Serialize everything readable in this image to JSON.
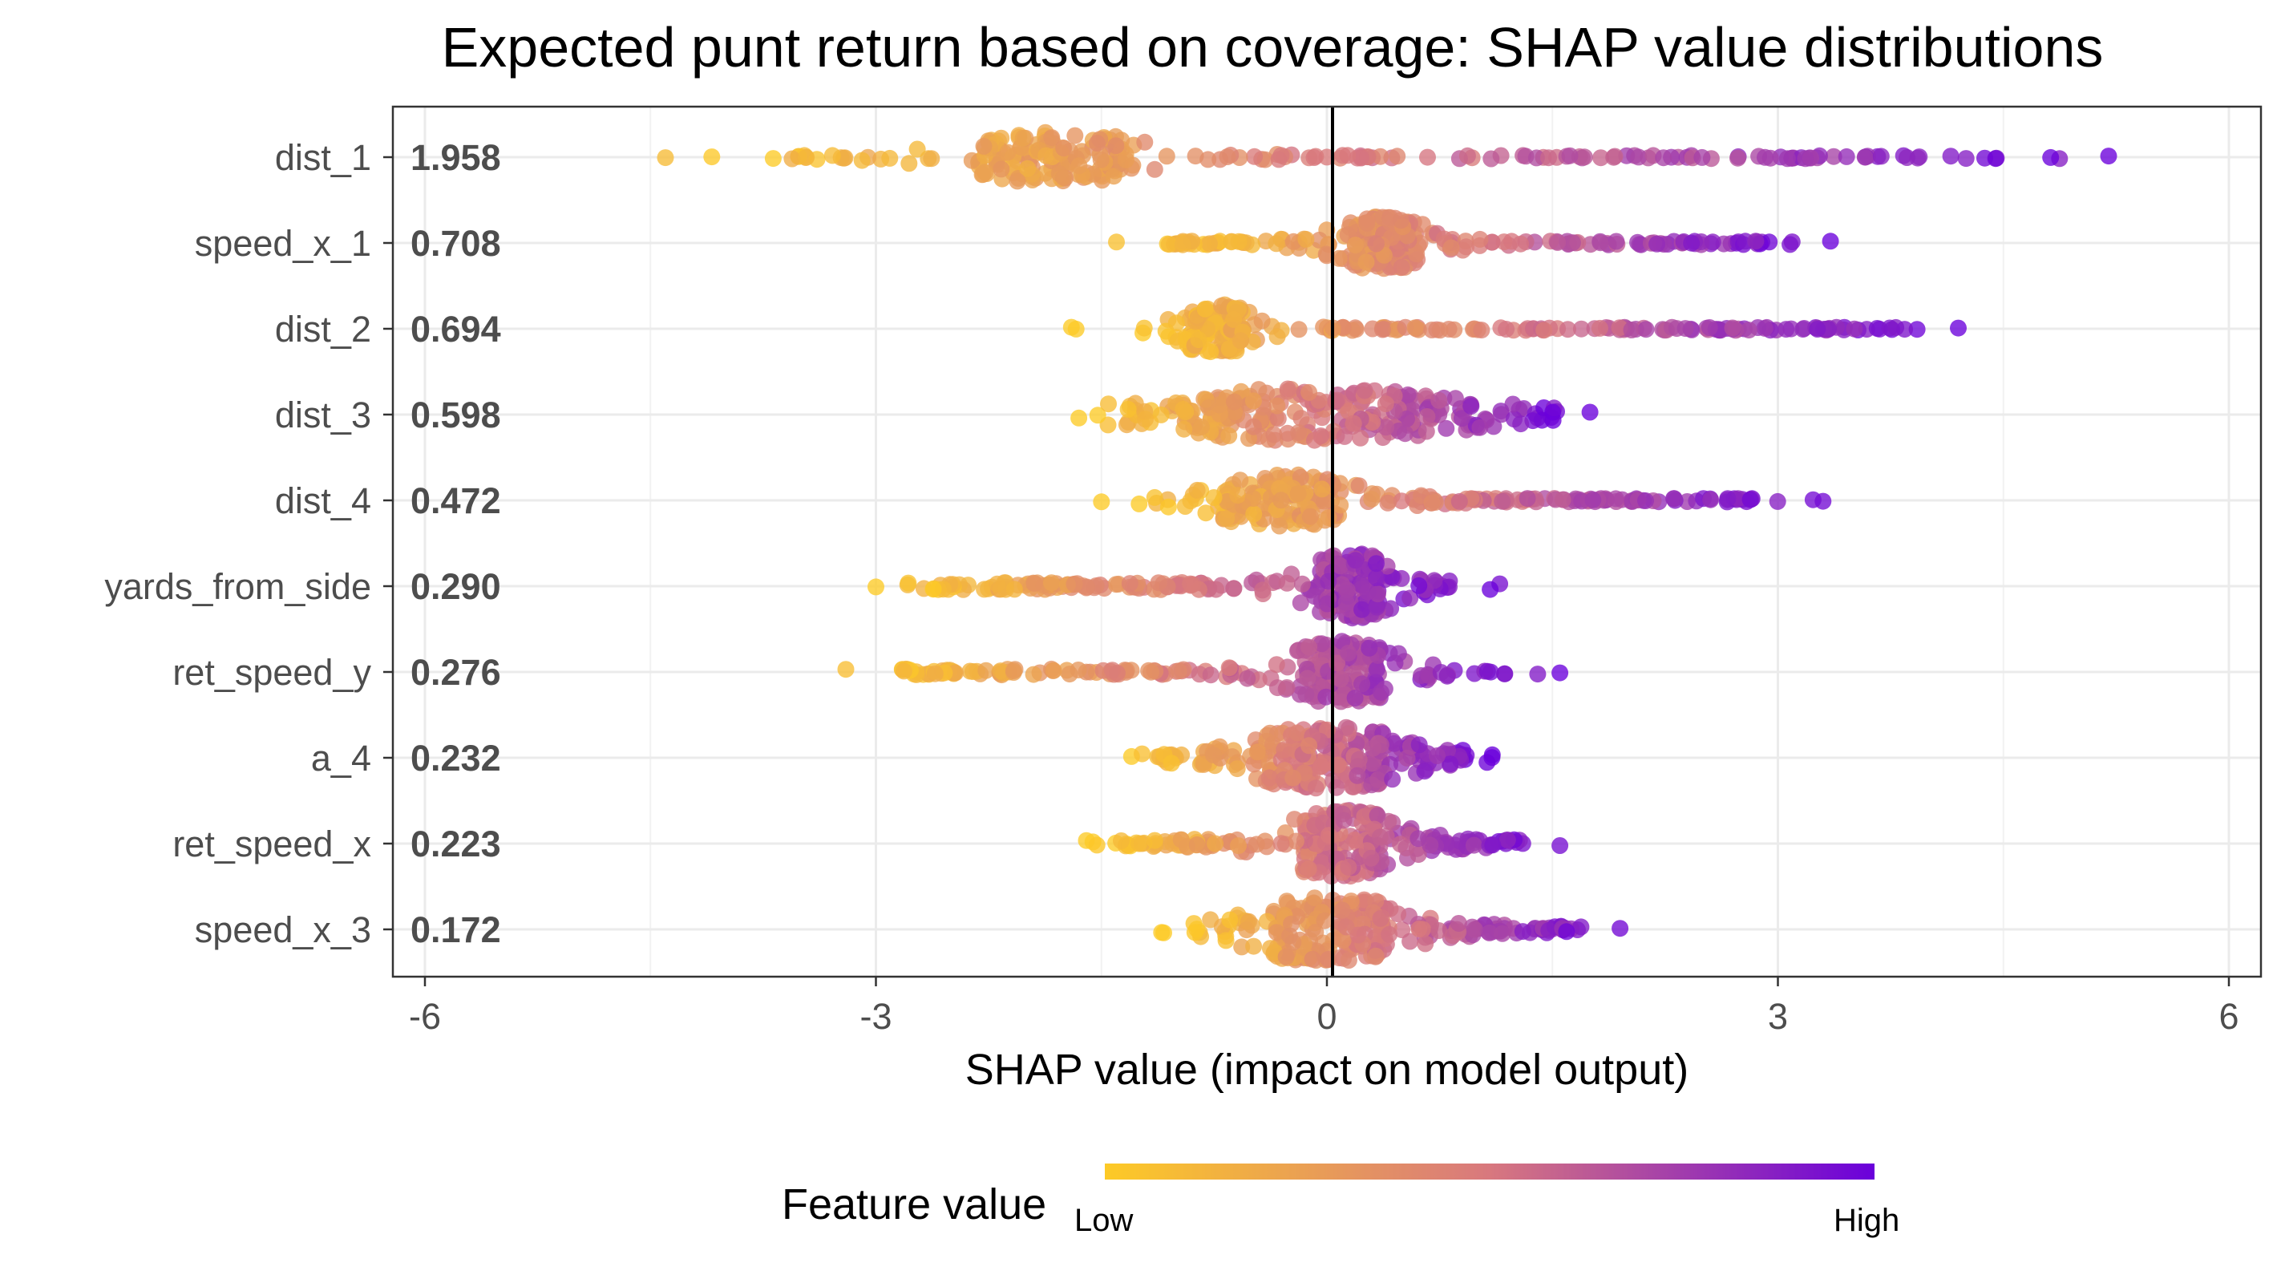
{
  "chart_data": {
    "type": "scatter",
    "subtype": "shap-beeswarm",
    "title": "Expected punt return based on coverage: SHAP value distributions",
    "xlabel": "SHAP value (impact on model output)",
    "xlim": [
      -6,
      6
    ],
    "xticks": [
      "-6",
      "-3",
      "0",
      "3",
      "6"
    ],
    "xtick_values": [
      -6,
      -3,
      0,
      3,
      6
    ],
    "grid": true,
    "legend": {
      "title": "Feature value",
      "low_label": "Low",
      "high_label": "High",
      "placement": "bottom",
      "low_color": "#FDCA26",
      "mid_color": "#D8787E",
      "high_color": "#6A00DB"
    },
    "features": [
      {
        "name": "dist_1",
        "importance": "1.958",
        "min": -4.4,
        "max": 5.2,
        "low_side": "negative",
        "core_lo": -2.2,
        "core_hi": -1.4,
        "spread": 0.28
      },
      {
        "name": "speed_x_1",
        "importance": "0.708",
        "min": -1.4,
        "max": 3.35,
        "low_side": "negative",
        "core_lo": 0.2,
        "core_hi": 0.55,
        "spread": 0.3
      },
      {
        "name": "dist_2",
        "importance": "0.694",
        "min": -1.7,
        "max": 4.2,
        "low_side": "negative",
        "core_lo": -0.9,
        "core_hi": -0.6,
        "spread": 0.26
      },
      {
        "name": "dist_3",
        "importance": "0.598",
        "min": -1.65,
        "max": 1.75,
        "low_side": "negative",
        "core_lo": -0.8,
        "core_hi": 0.6,
        "spread": 0.3
      },
      {
        "name": "dist_4",
        "importance": "0.472",
        "min": -1.5,
        "max": 3.3,
        "low_side": "negative",
        "core_lo": -0.6,
        "core_hi": 0.0,
        "spread": 0.3
      },
      {
        "name": "yards_from_side",
        "importance": "0.290",
        "min": -3.0,
        "max": 1.15,
        "low_side": "negative",
        "core_lo": 0.0,
        "core_hi": 0.3,
        "spread": 0.45
      },
      {
        "name": "ret_speed_y",
        "importance": "0.276",
        "min": -3.2,
        "max": 1.55,
        "low_side": "negative",
        "core_lo": -0.1,
        "core_hi": 0.3,
        "spread": 0.4
      },
      {
        "name": "a_4",
        "importance": "0.232",
        "min": -1.3,
        "max": 1.1,
        "low_side": "negative",
        "core_lo": -0.3,
        "core_hi": 0.3,
        "spread": 0.4
      },
      {
        "name": "ret_speed_x",
        "importance": "0.223",
        "min": -1.6,
        "max": 1.55,
        "low_side": "negative",
        "core_lo": -0.1,
        "core_hi": 0.3,
        "spread": 0.45
      },
      {
        "name": "speed_x_3",
        "importance": "0.172",
        "min": -1.1,
        "max": 1.95,
        "low_side": "negative",
        "core_lo": -0.3,
        "core_hi": 0.3,
        "spread": 0.42
      }
    ]
  }
}
